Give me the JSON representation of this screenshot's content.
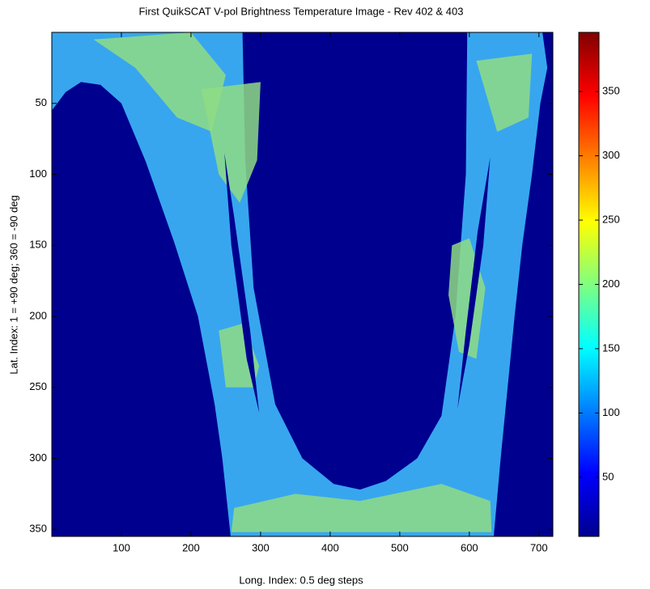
{
  "chart_data": {
    "type": "image",
    "title": "First QuikSCAT V-pol Brightness Temperature Image - Rev 402 & 403",
    "x_label": "Long. Index: 0.5 deg steps",
    "y_label": "Lat. Index: 1 = +90 deg; 360 = -90 deg",
    "xlim": [
      0,
      720
    ],
    "xticks": [
      100,
      200,
      300,
      400,
      500,
      600,
      700
    ],
    "ylim": [
      0,
      355
    ],
    "yticks": [
      50,
      100,
      150,
      200,
      250,
      300,
      350
    ],
    "y_reversed": true,
    "colormap": "jet",
    "clim": [
      4,
      396
    ],
    "cticks": [
      50,
      100,
      150,
      200,
      250,
      300,
      350
    ]
  }
}
